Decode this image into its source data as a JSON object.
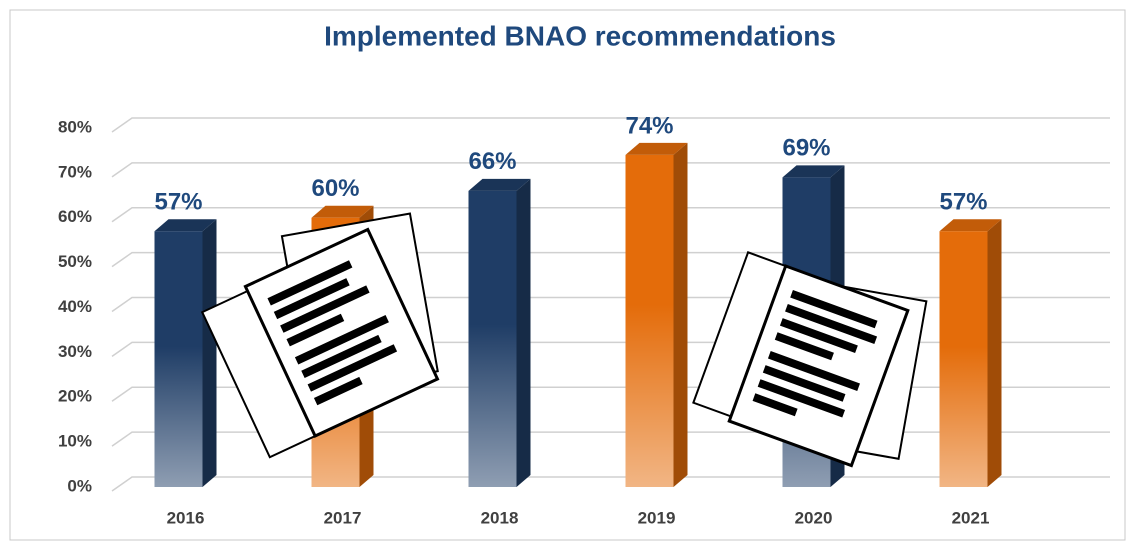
{
  "chart_data": {
    "type": "bar3d",
    "title": "Implemented BNAO recommendations",
    "categories": [
      "2016",
      "2017",
      "2018",
      "2019",
      "2020",
      "2021"
    ],
    "values": [
      57,
      60,
      66,
      74,
      69,
      57
    ],
    "value_labels": [
      "57%",
      "60%",
      "66%",
      "74%",
      "69%",
      "57%"
    ],
    "colors": [
      "#1f3d66",
      "#e46c0a",
      "#1f3d66",
      "#e46c0a",
      "#1f3d66",
      "#e46c0a"
    ],
    "ylim": [
      0,
      80
    ],
    "yticks": [
      {
        "value": 0,
        "label": "0%"
      },
      {
        "value": 10,
        "label": "10%"
      },
      {
        "value": 20,
        "label": "20%"
      },
      {
        "value": 30,
        "label": "30%"
      },
      {
        "value": 40,
        "label": "40%"
      },
      {
        "value": 50,
        "label": "50%"
      },
      {
        "value": 60,
        "label": "60%"
      },
      {
        "value": 70,
        "label": "70%"
      },
      {
        "value": 80,
        "label": "80%"
      }
    ],
    "grid": true
  }
}
